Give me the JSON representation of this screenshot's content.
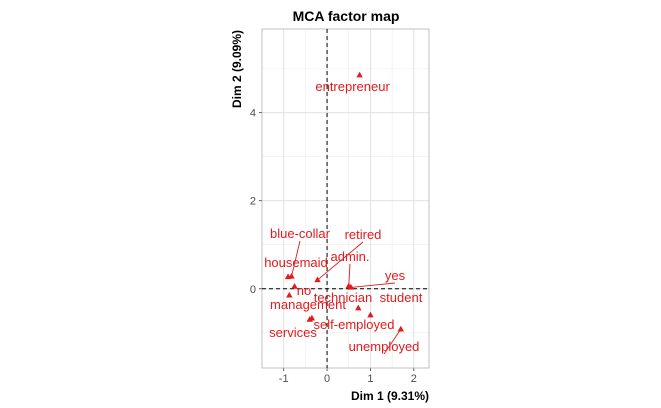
{
  "chart_data": {
    "type": "scatter",
    "title": "MCA factor map",
    "xlabel": "Dim 1 (9.31%)",
    "ylabel": "Dim 2 (9.09%)",
    "xlim": [
      -1.5,
      2.35
    ],
    "ylim": [
      -1.8,
      5.9
    ],
    "xticks": [
      -1,
      0,
      1,
      2
    ],
    "yticks": [
      0,
      2,
      4
    ],
    "xtick_labels": [
      "-1",
      "0",
      "1",
      "2"
    ],
    "ytick_labels": [
      "0",
      "2",
      "4"
    ],
    "grid": true,
    "reference_lines": {
      "x": 0,
      "y": 0,
      "style": "dashed"
    },
    "point_color": "#e31a1c",
    "points": [
      {
        "label": "entrepreneur",
        "x": 0.75,
        "y": 4.85
      },
      {
        "label": "blue-collar",
        "x": -0.82,
        "y": 0.28
      },
      {
        "label": "retired",
        "x": -0.22,
        "y": 0.2
      },
      {
        "label": "admin.",
        "x": 0.5,
        "y": 0.06
      },
      {
        "label": "yes",
        "x": 0.55,
        "y": 0.03
      },
      {
        "label": "housemaid",
        "x": -0.9,
        "y": 0.27
      },
      {
        "label": "no",
        "x": -0.75,
        "y": 0.05
      },
      {
        "label": "management",
        "x": -0.87,
        "y": -0.15
      },
      {
        "label": "technician",
        "x": 0.72,
        "y": -0.44
      },
      {
        "label": "student",
        "x": 1.0,
        "y": -0.6
      },
      {
        "label": "self-employed",
        "x": -0.35,
        "y": -0.67
      },
      {
        "label": "unemployed",
        "x": 1.7,
        "y": -0.92
      },
      {
        "label": "services",
        "x": -0.4,
        "y": -0.7
      }
    ]
  }
}
